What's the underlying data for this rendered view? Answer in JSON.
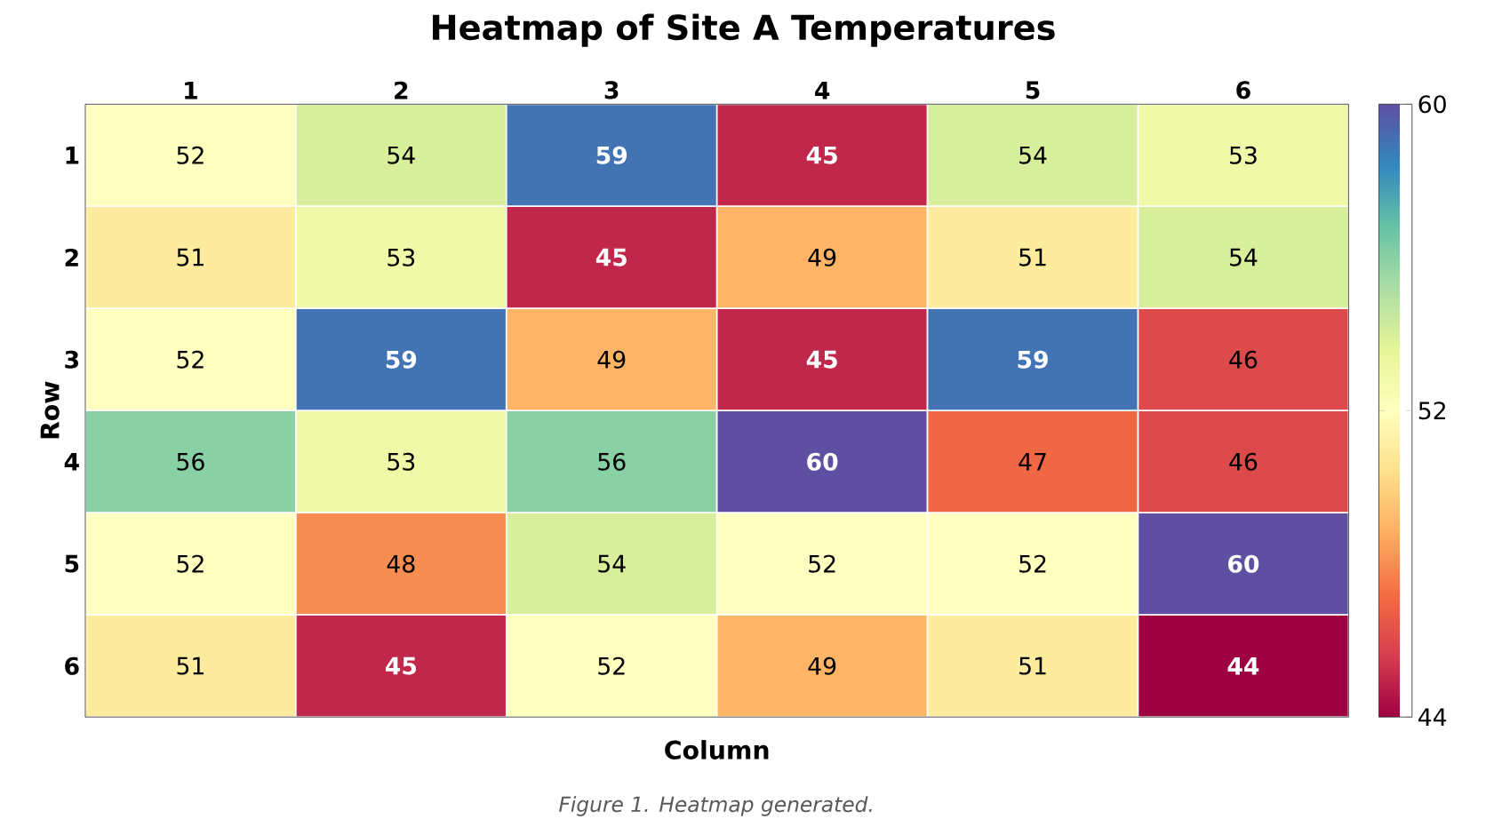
{
  "chart_data": {
    "type": "heatmap",
    "title": "Heatmap of Site A Temperatures",
    "xlabel": "Column",
    "ylabel": "Row",
    "categories": [
      "1",
      "2",
      "3",
      "4",
      "5",
      "6"
    ],
    "y_categories": [
      "1",
      "2",
      "3",
      "4",
      "5",
      "6"
    ],
    "cells": [
      [
        52,
        54,
        59,
        45,
        54,
        53
      ],
      [
        51,
        53,
        45,
        49,
        51,
        54
      ],
      [
        52,
        59,
        49,
        45,
        59,
        46
      ],
      [
        56,
        53,
        56,
        60,
        47,
        46
      ],
      [
        52,
        48,
        54,
        52,
        52,
        60
      ],
      [
        51,
        45,
        52,
        49,
        51,
        44
      ]
    ],
    "data_labels": true,
    "clim": [
      44,
      60
    ],
    "cticks": [
      44,
      52,
      60
    ],
    "annotations": [
      "Figure 1. Heatmap generated."
    ]
  }
}
